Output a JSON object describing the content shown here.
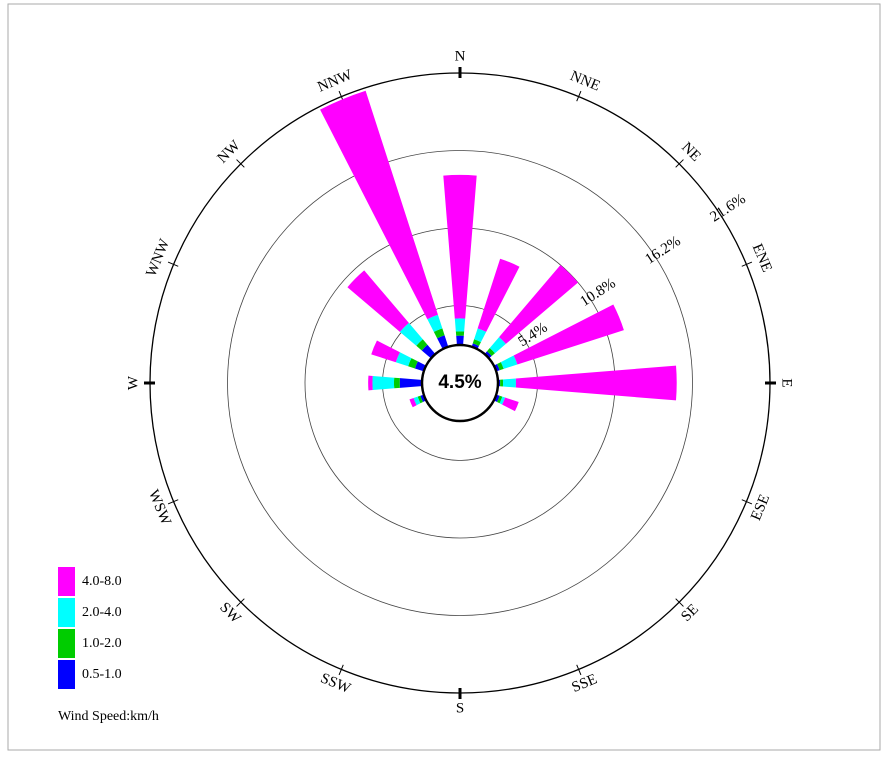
{
  "chart_data": {
    "type": "wind-rose",
    "directions": [
      "N",
      "NNE",
      "NE",
      "ENE",
      "E",
      "ESE",
      "SE",
      "SSE",
      "S",
      "SSW",
      "SW",
      "WSW",
      "W",
      "WNW",
      "NW",
      "NNW"
    ],
    "series": [
      {
        "name": "0.5-1.0",
        "color": "#0000ff",
        "values": [
          3.3,
          2.9,
          2.9,
          2.9,
          2.8,
          2.9,
          2.4,
          2.4,
          2.4,
          2.4,
          2.4,
          2.9,
          4.2,
          3.3,
          3.5,
          3.5
        ]
      },
      {
        "name": "1.0-2.0",
        "color": "#00cc00",
        "values": [
          0.3,
          0.3,
          0.3,
          0.3,
          0.2,
          0.2,
          0,
          0,
          0,
          0,
          0,
          0.2,
          0.4,
          0.5,
          0.5,
          0.5
        ]
      },
      {
        "name": "2.0-4.0",
        "color": "#00ffff",
        "values": [
          0.9,
          0.8,
          1.0,
          1.0,
          0.9,
          0.2,
          0,
          0,
          0,
          0,
          0,
          0.3,
          1.5,
          0.9,
          1.5,
          1.0
        ]
      },
      {
        "name": "4.0-8.0",
        "color": "#ff00ff",
        "values": [
          10.0,
          5.1,
          6.6,
          7.8,
          11.2,
          1.0,
          0,
          0,
          0,
          0,
          0,
          0.3,
          0.3,
          1.8,
          4.8,
          16.4
        ]
      }
    ],
    "rlim": [
      0,
      21.6
    ],
    "rticks": [
      {
        "value": 5.4,
        "label": "5.4%"
      },
      {
        "value": 10.8,
        "label": "10.8%"
      },
      {
        "value": 16.2,
        "label": "16.2%"
      },
      {
        "value": 21.6,
        "label": "21.6%"
      }
    ],
    "calm": {
      "value": 4.5,
      "label": "4.5%"
    },
    "legend_title": "Wind Speed:km/h"
  }
}
